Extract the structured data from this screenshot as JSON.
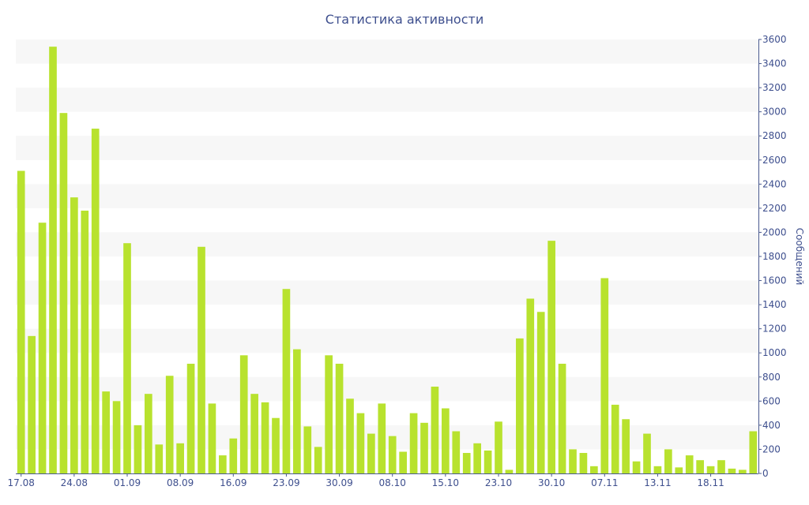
{
  "chart_data": {
    "type": "bar",
    "title": "Статистика активности",
    "ylabel": "Сообщений",
    "xlabel": "",
    "ylim": [
      0,
      3600
    ],
    "yticks": [
      0,
      200,
      400,
      600,
      800,
      1000,
      1200,
      1400,
      1600,
      1800,
      2000,
      2200,
      2400,
      2600,
      2800,
      3000,
      3200,
      3400,
      3600
    ],
    "grid": "horizontal alternating bands",
    "x_tick_labels": [
      {
        "label": "17.08",
        "index": 0
      },
      {
        "label": "24.08",
        "index": 5
      },
      {
        "label": "01.09",
        "index": 10
      },
      {
        "label": "08.09",
        "index": 15
      },
      {
        "label": "16.09",
        "index": 20
      },
      {
        "label": "23.09",
        "index": 25
      },
      {
        "label": "30.09",
        "index": 30
      },
      {
        "label": "08.10",
        "index": 35
      },
      {
        "label": "15.10",
        "index": 40
      },
      {
        "label": "23.10",
        "index": 45
      },
      {
        "label": "30.10",
        "index": 50
      },
      {
        "label": "07.11",
        "index": 55
      },
      {
        "label": "13.11",
        "index": 60
      },
      {
        "label": "18.11",
        "index": 65
      }
    ],
    "values": [
      2510,
      1140,
      2080,
      3540,
      2990,
      2290,
      2180,
      2860,
      680,
      600,
      1910,
      400,
      660,
      240,
      810,
      250,
      910,
      1880,
      580,
      150,
      290,
      980,
      660,
      590,
      460,
      1530,
      1030,
      390,
      220,
      980,
      910,
      620,
      500,
      330,
      580,
      310,
      180,
      500,
      420,
      720,
      540,
      350,
      170,
      250,
      190,
      430,
      30,
      1120,
      1450,
      1340,
      1930,
      910,
      200,
      170,
      60,
      1620,
      570,
      450,
      100,
      330,
      60,
      200,
      50,
      150,
      110,
      60,
      110,
      40,
      30,
      350
    ],
    "colors": {
      "bar": "#b8e22e",
      "band": "#f7f7f7",
      "text": "#3e4f8e",
      "axis": "#4a5a8f"
    }
  }
}
